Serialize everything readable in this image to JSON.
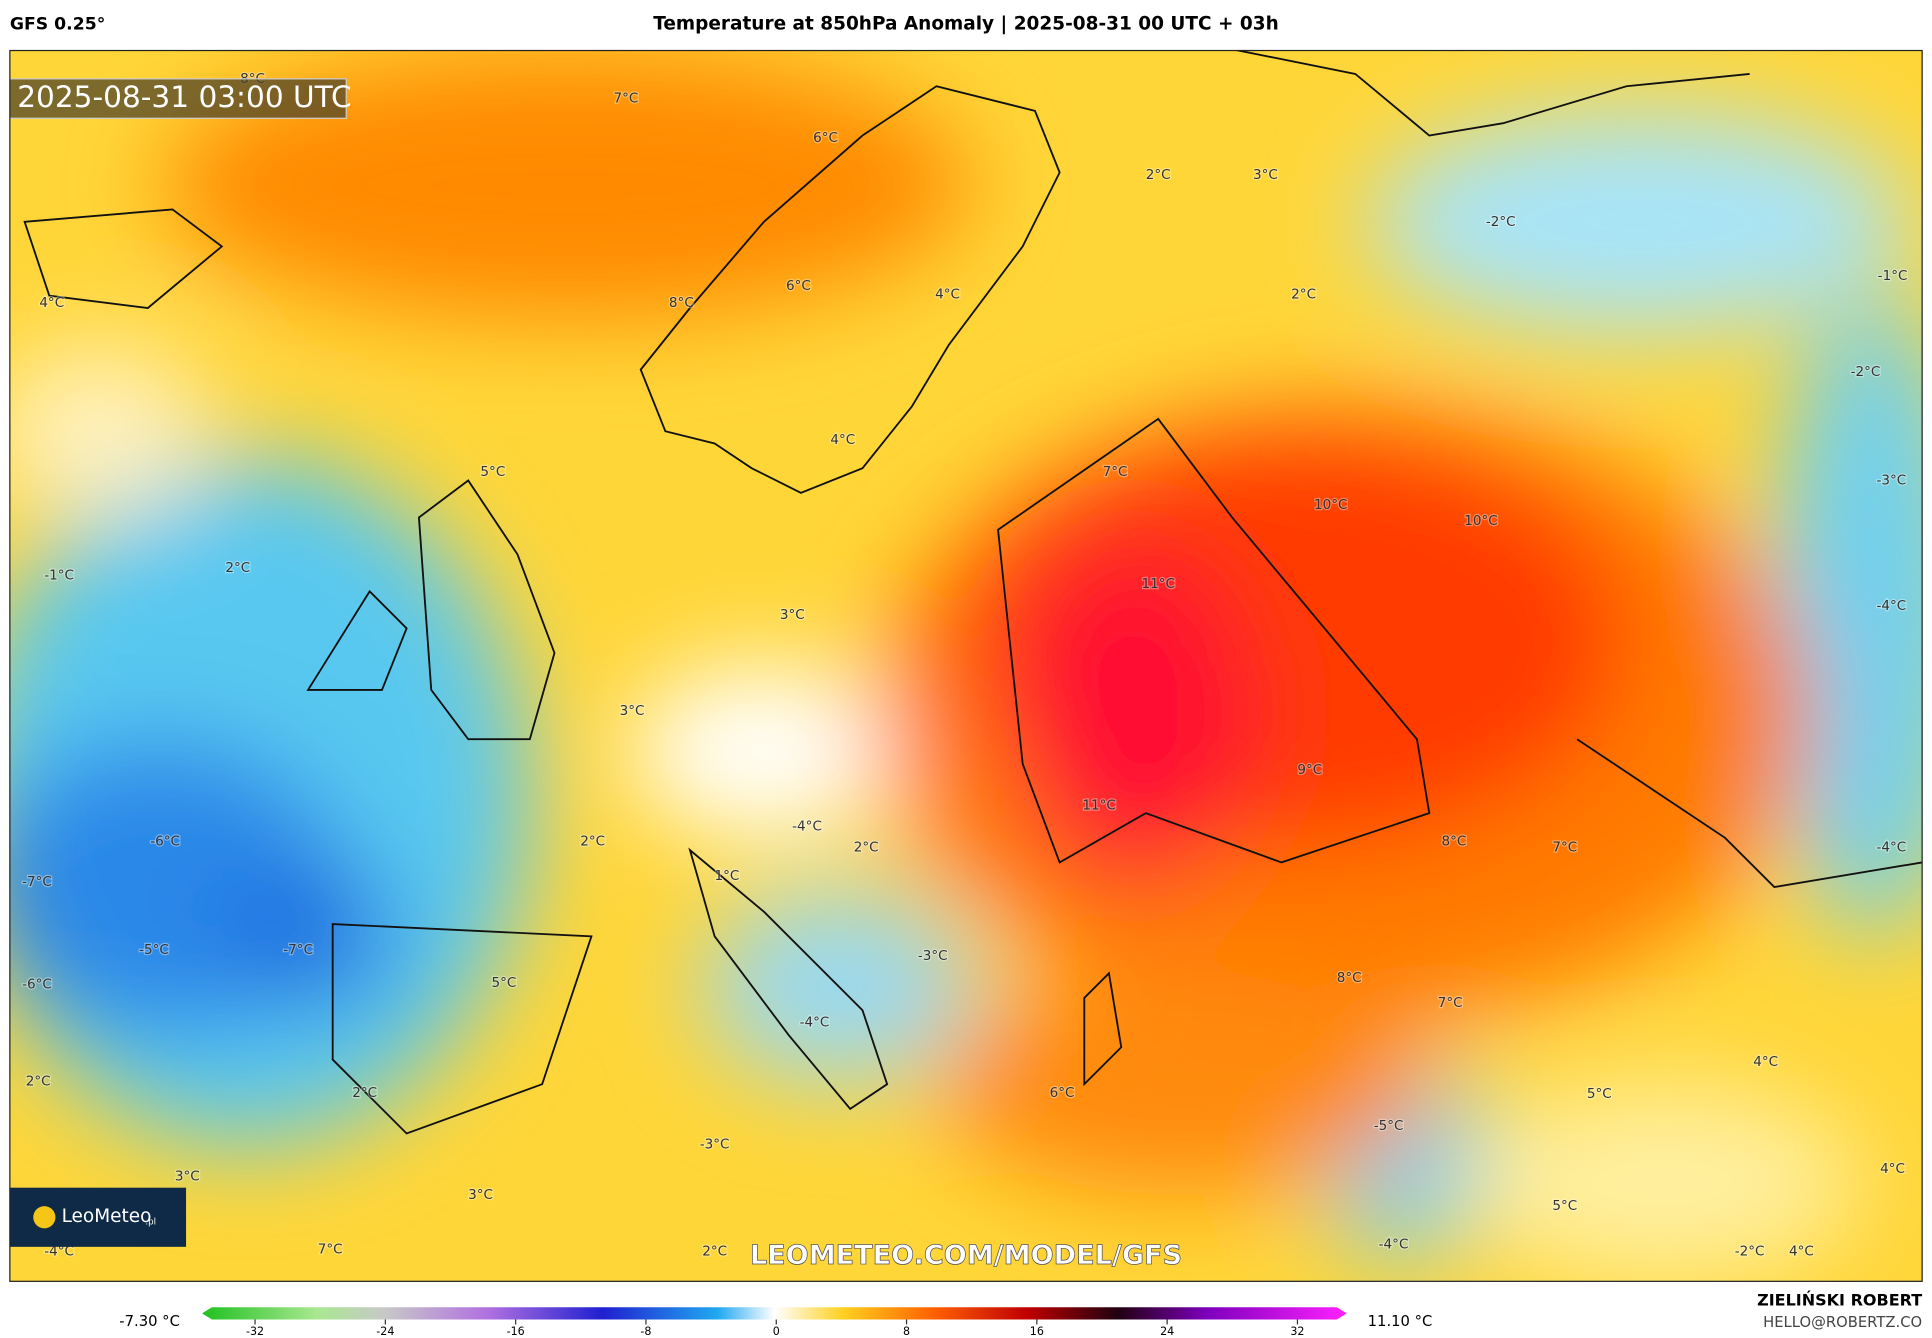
{
  "header": {
    "model": "GFS 0.25°",
    "title": "Temperature at 850hPa Anomaly | 2025-08-31 00 UTC + 03h",
    "timestamp": "2025-08-31 03:00 UTC",
    "watermark": "LEOMETEO.COM/MODEL/GFS",
    "logo": "LeoMeteo",
    "logo_suffix": ".pl"
  },
  "map_labels": [
    "7°C",
    "8°C",
    "6°C",
    "2°C",
    "3°C",
    "-2°C",
    "4°C",
    "8°C",
    "6°C",
    "4°C",
    "2°C",
    "-1°C",
    "-2°C",
    "4°C",
    "5°C",
    "7°C",
    "10°C",
    "10°C",
    "-3°C",
    "-1°C",
    "2°C",
    "11°C",
    "3°C",
    "-4°C",
    "3°C",
    "9°C",
    "11°C",
    "-4°C",
    "-6°C",
    "2°C",
    "2°C",
    "8°C",
    "7°C",
    "-4°C",
    "-7°C",
    "1°C",
    "-5°C",
    "-7°C",
    "-3°C",
    "8°C",
    "-6°C",
    "5°C",
    "7°C",
    "-4°C",
    "4°C",
    "2°C",
    "2°C",
    "6°C",
    "5°C",
    "-5°C",
    "-3°C",
    "3°C",
    "4°C",
    "3°C",
    "5°C",
    "-4°C",
    "-4°C",
    "7°C",
    "2°C",
    "-2°C",
    "4°C"
  ],
  "colorbar": {
    "min_label": "-7.30 °C",
    "max_label": "11.10 °C",
    "lim": [
      -32,
      32
    ],
    "ticks": [
      -32,
      -24,
      -16,
      -8,
      0,
      8,
      16,
      24,
      32
    ]
  },
  "footer": {
    "author": "ZIELIŃSKI ROBERT",
    "email": "HELLO@ROBERTZ.CO"
  }
}
